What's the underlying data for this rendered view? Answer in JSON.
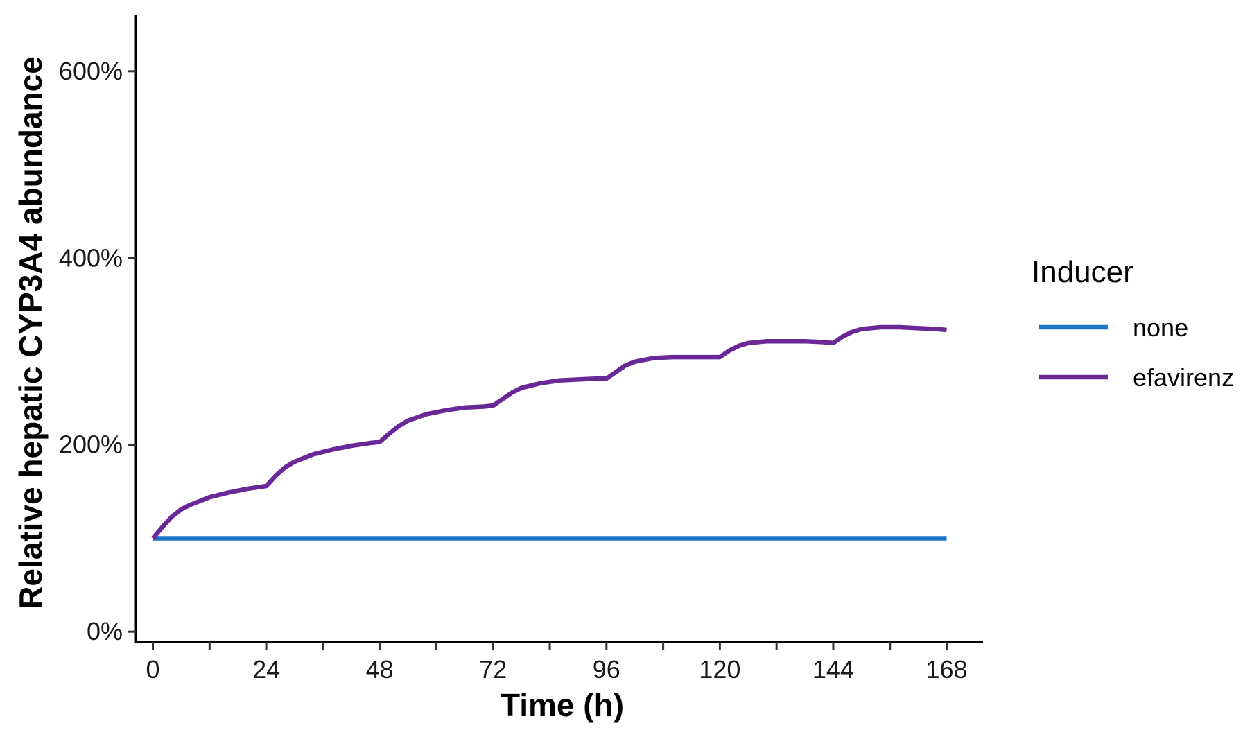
{
  "chart_data": {
    "type": "line",
    "xlabel": "Time (h)",
    "ylabel": "Relative hepatic CYP3A4 abundance",
    "x_ticks": [
      0,
      24,
      48,
      72,
      96,
      120,
      144,
      168
    ],
    "x_ticks_minor": [
      12,
      36,
      60,
      84,
      108,
      132,
      156
    ],
    "y_ticks": [
      0,
      200,
      400,
      600
    ],
    "y_tick_labels": [
      "0%",
      "200%",
      "400%",
      "600%"
    ],
    "xlim": [
      -3.6,
      175.7
    ],
    "ylim": [
      -11,
      660
    ],
    "grid": false,
    "legend": {
      "title": "Inducer",
      "position": "right"
    },
    "series": [
      {
        "name": "none",
        "color": "#1C74CA",
        "x": [
          0,
          168
        ],
        "y": [
          100,
          100
        ]
      },
      {
        "name": "efavirenz",
        "color": "#6A2896",
        "x": [
          0,
          2,
          4,
          6,
          8,
          12,
          16,
          20,
          24,
          26,
          28,
          30,
          34,
          38,
          42,
          46,
          48,
          50,
          52,
          54,
          58,
          62,
          66,
          70,
          72,
          74,
          76,
          78,
          82,
          86,
          90,
          94,
          96,
          98,
          100,
          102,
          106,
          110,
          114,
          118,
          120,
          122,
          124,
          126,
          130,
          134,
          138,
          142,
          144,
          146,
          148,
          150,
          154,
          158,
          162,
          166,
          168
        ],
        "y": [
          100,
          112,
          123,
          131,
          136,
          144,
          149,
          153,
          156,
          167,
          176,
          182,
          190,
          195,
          199,
          202,
          203,
          212,
          220,
          226,
          233,
          237,
          240,
          241,
          242,
          249,
          256,
          261,
          266,
          269,
          270,
          271,
          271,
          278,
          285,
          289,
          293,
          294,
          294,
          294,
          294,
          301,
          306,
          309,
          311,
          311,
          311,
          310,
          309,
          316,
          321,
          324,
          326,
          326,
          325,
          324,
          323
        ]
      }
    ]
  }
}
